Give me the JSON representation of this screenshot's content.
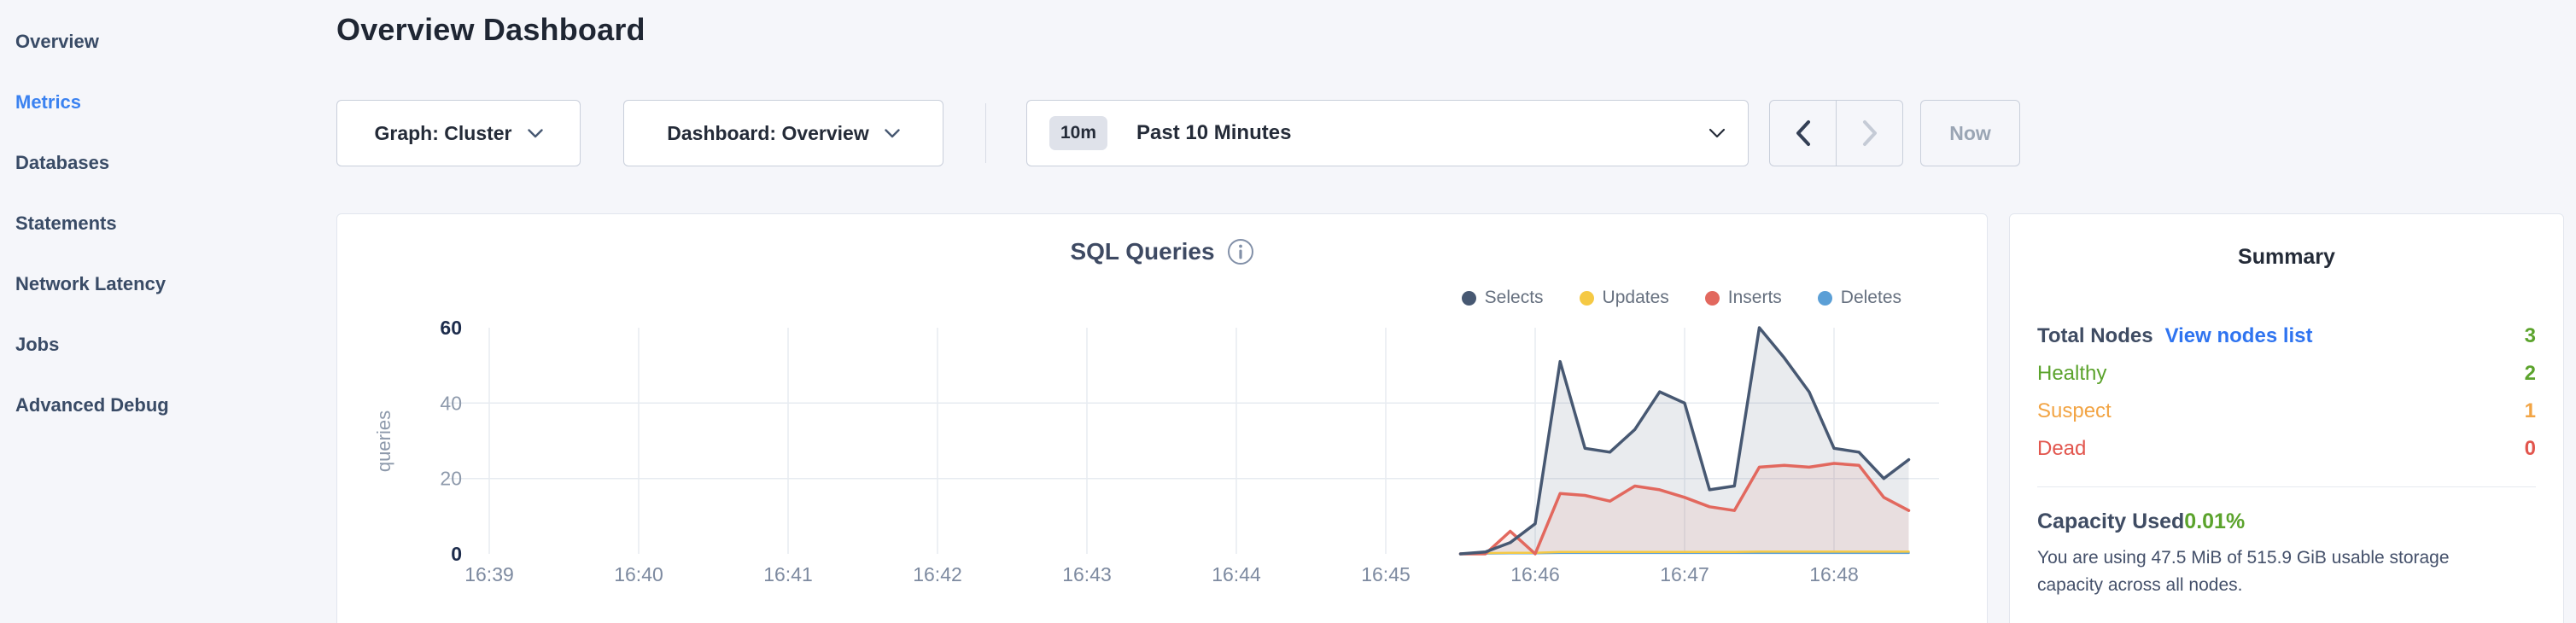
{
  "sidebar": {
    "items": [
      {
        "label": "Overview",
        "active": false
      },
      {
        "label": "Metrics",
        "active": true
      },
      {
        "label": "Databases",
        "active": false
      },
      {
        "label": "Statements",
        "active": false
      },
      {
        "label": "Network Latency",
        "active": false
      },
      {
        "label": "Jobs",
        "active": false
      },
      {
        "label": "Advanced Debug",
        "active": false
      }
    ]
  },
  "header": {
    "title": "Overview Dashboard"
  },
  "controls": {
    "graph_dropdown": {
      "label": "Graph: Cluster",
      "icon": "chevron-down-icon"
    },
    "dashboard_dropdown": {
      "label": "Dashboard: Overview",
      "icon": "chevron-down-icon"
    },
    "time_selector": {
      "badge": "10m",
      "label": "Past 10 Minutes",
      "icon": "chevron-down-icon"
    },
    "prev_button": {
      "icon": "chevron-left-icon",
      "enabled": true
    },
    "next_button": {
      "icon": "chevron-right-icon",
      "enabled": false
    },
    "now_button": {
      "label": "Now",
      "enabled": false
    }
  },
  "chart_card": {
    "title": "SQL Queries",
    "info_icon": "info-circle-icon"
  },
  "chart_data": {
    "type": "area",
    "title": "SQL Queries",
    "ylabel": "queries",
    "grid": true,
    "legend_position": "top-right",
    "ylim": [
      0,
      60
    ],
    "y_ticks": [
      0,
      20,
      40,
      60
    ],
    "y_gridlines": [
      20,
      40
    ],
    "x_range_seconds": [
      0,
      585
    ],
    "x_ticks": [
      {
        "t": 0,
        "label": "16:39"
      },
      {
        "t": 60,
        "label": "16:40"
      },
      {
        "t": 120,
        "label": "16:41"
      },
      {
        "t": 180,
        "label": "16:42"
      },
      {
        "t": 240,
        "label": "16:43"
      },
      {
        "t": 300,
        "label": "16:44"
      },
      {
        "t": 360,
        "label": "16:45"
      },
      {
        "t": 420,
        "label": "16:46"
      },
      {
        "t": 480,
        "label": "16:47"
      },
      {
        "t": 540,
        "label": "16:48"
      }
    ],
    "x_seconds": [
      390,
      400,
      410,
      420,
      430,
      440,
      450,
      460,
      470,
      480,
      490,
      500,
      510,
      520,
      530,
      540,
      550,
      560,
      570
    ],
    "series": [
      {
        "name": "Selects",
        "color": "#475872",
        "fill": "rgba(71,88,114,0.12)",
        "values": [
          0,
          0.5,
          3,
          8,
          51,
          28,
          27,
          33,
          43,
          40,
          17,
          18,
          60,
          52,
          43,
          28,
          27,
          20,
          25
        ]
      },
      {
        "name": "Updates",
        "color": "#f5c944",
        "fill": "none",
        "values": [
          0,
          0.2,
          0.3,
          0.3,
          0.5,
          0.5,
          0.5,
          0.5,
          0.5,
          0.5,
          0.5,
          0.5,
          0.6,
          0.6,
          0.6,
          0.6,
          0.6,
          0.6,
          0.6
        ]
      },
      {
        "name": "Inserts",
        "color": "#e2685e",
        "fill": "rgba(226,104,94,0.10)",
        "values": [
          0,
          0,
          6,
          0,
          16,
          15.5,
          14,
          18,
          17,
          15,
          12.5,
          11.5,
          23,
          23.5,
          23,
          24,
          23.5,
          15,
          11.5
        ]
      },
      {
        "name": "Deletes",
        "color": "#5b9fd6",
        "fill": "none",
        "values": [
          0,
          0.1,
          0.15,
          0.15,
          0.25,
          0.25,
          0.25,
          0.25,
          0.25,
          0.25,
          0.25,
          0.25,
          0.25,
          0.25,
          0.25,
          0.25,
          0.25,
          0.25,
          0.25
        ]
      }
    ]
  },
  "summary": {
    "title": "Summary",
    "total_nodes_label": "Total Nodes",
    "view_nodes_link": "View nodes list",
    "total_nodes_value": "3",
    "healthy_label": "Healthy",
    "healthy_value": "2",
    "suspect_label": "Suspect",
    "suspect_value": "1",
    "dead_label": "Dead",
    "dead_value": "0",
    "capacity_label": "Capacity Used",
    "capacity_value": "0.01%",
    "capacity_description": "You are using 47.5 MiB of 515.9 GiB usable storage capacity across all nodes."
  },
  "colors": {
    "accent_blue": "#3b82f0",
    "link_blue": "#2f74f0",
    "green": "#5ba32c",
    "orange": "#f2a444",
    "red": "#e2554d"
  }
}
